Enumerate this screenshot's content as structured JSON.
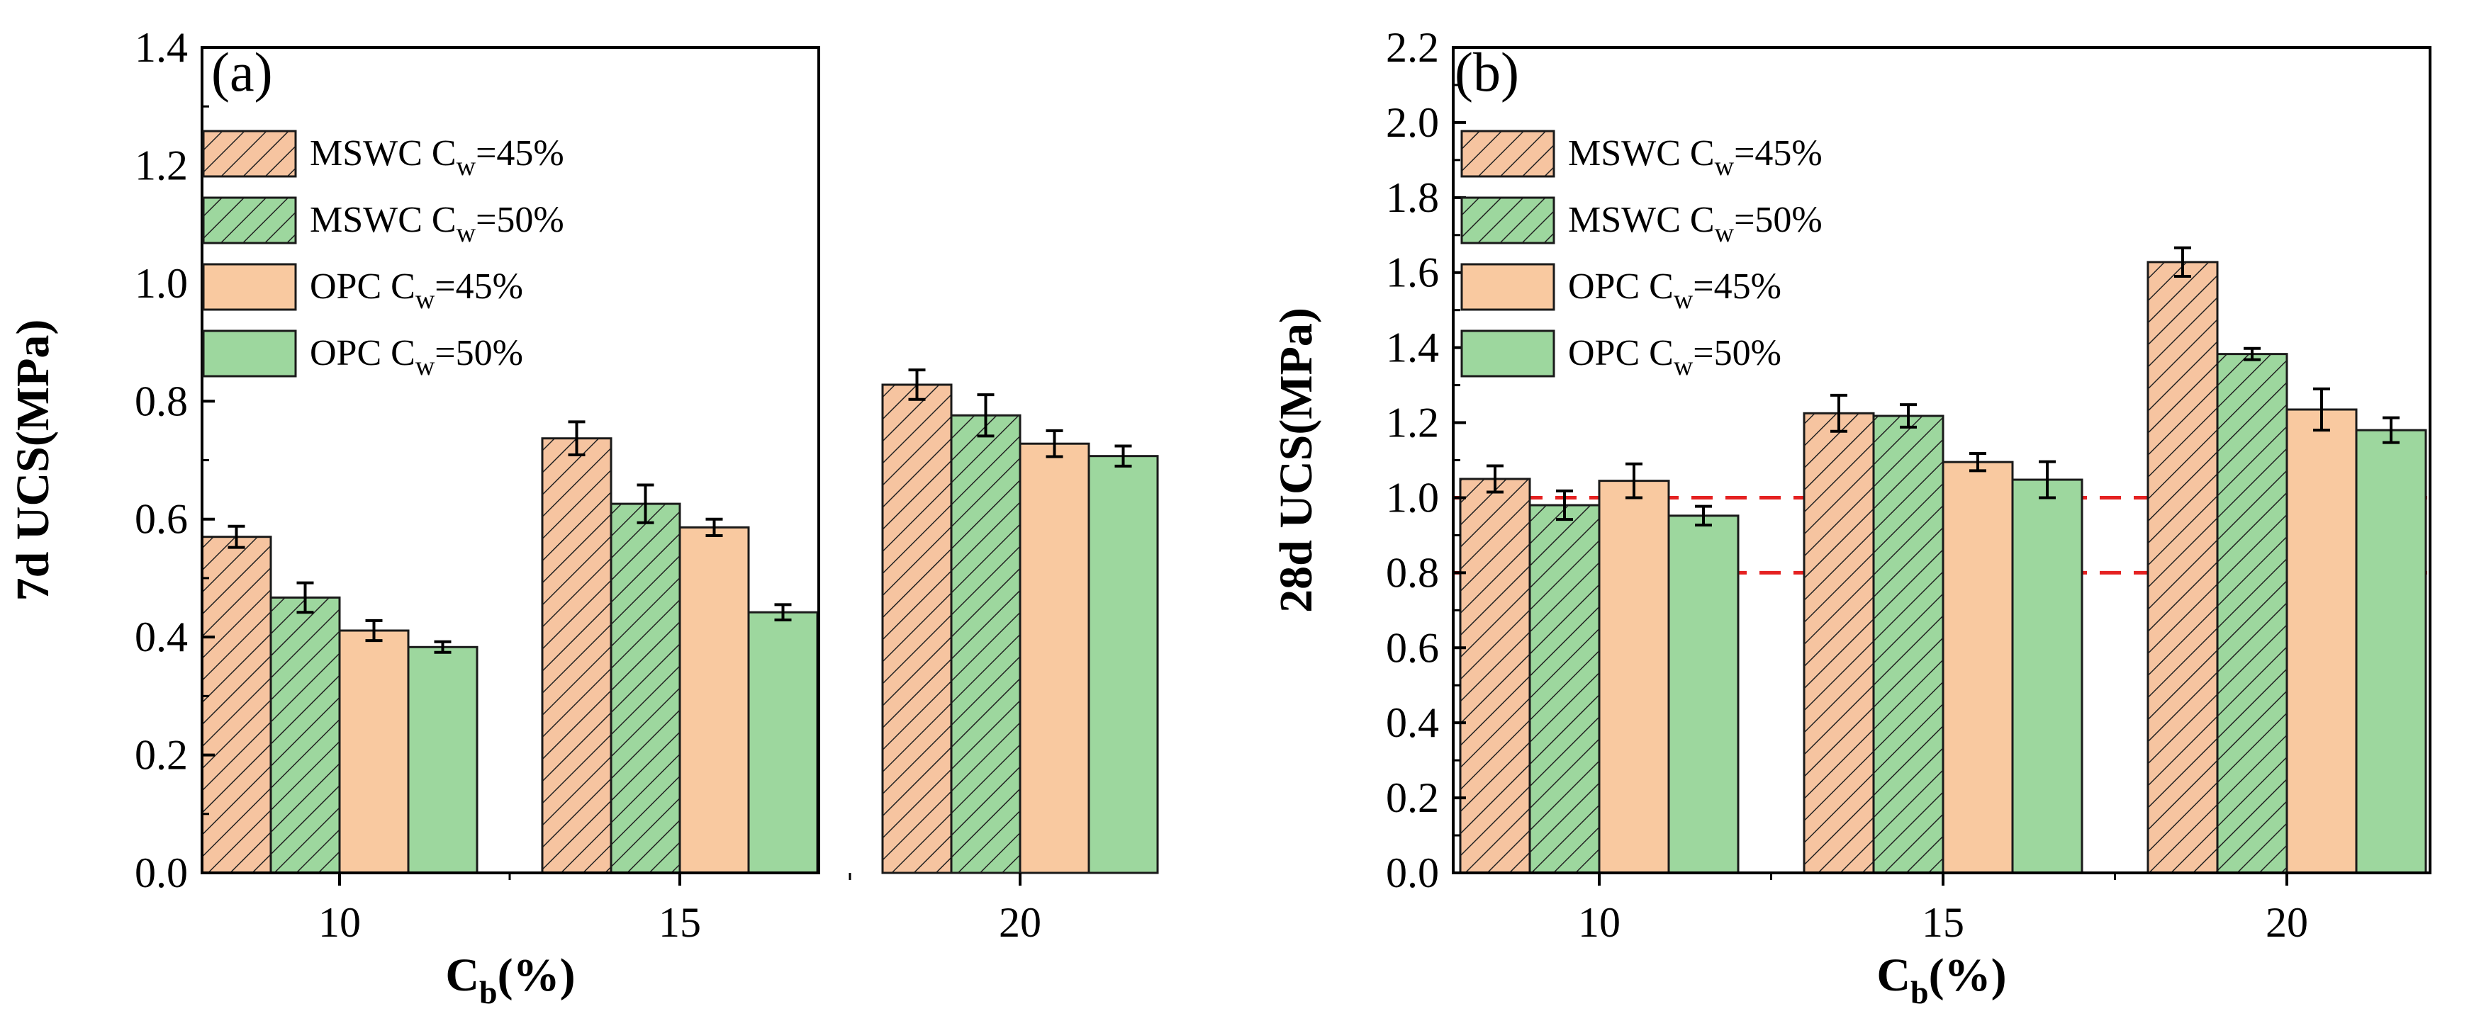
{
  "colors": {
    "msw_orange": "#f6c4a0",
    "msw_green": "#9dd79e",
    "opc_orange": "#f9c9a0",
    "opc_green": "#9dd79e",
    "hatch": "#222222",
    "ref_line": "#e52121"
  },
  "chart_data": [
    {
      "type": "bar",
      "panel_label": "(a)",
      "xlabel": {
        "main": "C",
        "sub": "b",
        "suffix": "(%)"
      },
      "ylabel": "7d UCS(MPa)",
      "categories": [
        "10",
        "15",
        "20"
      ],
      "ylim": [
        0,
        1.4
      ],
      "yticks": [
        "0.0",
        "0.2",
        "0.4",
        "0.6",
        "0.8",
        "1.0",
        "1.2",
        "1.4"
      ],
      "legend_position": "top-left",
      "series": [
        {
          "name": "MSWC C_w=45%",
          "label_pre": "MSWC C",
          "label_sub": "w",
          "label_post": "=45%",
          "pattern": "hatch",
          "color_key": "msw_orange",
          "values": [
            0.57,
            0.737,
            0.828
          ],
          "errors": [
            0.018,
            0.028,
            0.025
          ]
        },
        {
          "name": "MSWC C_w=50%",
          "label_pre": "MSWC C",
          "label_sub": "w",
          "label_post": "=50%",
          "pattern": "hatch",
          "color_key": "msw_green",
          "values": [
            0.467,
            0.626,
            0.776
          ],
          "errors": [
            0.025,
            0.032,
            0.035
          ]
        },
        {
          "name": "OPC C_w=45%",
          "label_pre": "OPC C",
          "label_sub": "w",
          "label_post": "=45%",
          "pattern": "solid",
          "color_key": "opc_orange",
          "values": [
            0.411,
            0.586,
            0.728
          ],
          "errors": [
            0.017,
            0.014,
            0.022
          ]
        },
        {
          "name": "OPC C_w=50%",
          "label_pre": "OPC C",
          "label_sub": "w",
          "label_post": "=50%",
          "pattern": "solid",
          "color_key": "opc_green",
          "values": [
            0.383,
            0.442,
            0.707
          ],
          "errors": [
            0.009,
            0.013,
            0.017
          ]
        }
      ],
      "reference_lines": []
    },
    {
      "type": "bar",
      "panel_label": "(b)",
      "xlabel": {
        "main": "C",
        "sub": "b",
        "suffix": "(%)"
      },
      "ylabel": "28d UCS(MPa)",
      "categories": [
        "10",
        "15",
        "20"
      ],
      "ylim": [
        0,
        2.2
      ],
      "yticks": [
        "0.0",
        "0.2",
        "0.4",
        "0.6",
        "0.8",
        "1.0",
        "1.2",
        "1.4",
        "1.6",
        "1.8",
        "2.0",
        "2.2"
      ],
      "legend_position": "top-left",
      "series": [
        {
          "name": "MSWC C_w=45%",
          "label_pre": "MSWC C",
          "label_sub": "w",
          "label_post": "=45%",
          "pattern": "hatch",
          "color_key": "msw_orange",
          "values": [
            1.05,
            1.225,
            1.628
          ],
          "errors": [
            0.035,
            0.048,
            0.038
          ]
        },
        {
          "name": "MSWC C_w=50%",
          "label_pre": "MSWC C",
          "label_sub": "w",
          "label_post": "=50%",
          "pattern": "hatch",
          "color_key": "msw_green",
          "values": [
            0.98,
            1.218,
            1.383
          ],
          "errors": [
            0.038,
            0.03,
            0.015
          ]
        },
        {
          "name": "OPC C_w=45%",
          "label_pre": "OPC C",
          "label_sub": "w",
          "label_post": "=45%",
          "pattern": "solid",
          "color_key": "opc_orange",
          "values": [
            1.045,
            1.095,
            1.235
          ],
          "errors": [
            0.045,
            0.023,
            0.055
          ]
        },
        {
          "name": "OPC C_w=50%",
          "label_pre": "OPC C",
          "label_sub": "w",
          "label_post": "=50%",
          "pattern": "solid",
          "color_key": "opc_green",
          "values": [
            0.952,
            1.048,
            1.18
          ],
          "errors": [
            0.025,
            0.048,
            0.033
          ]
        }
      ],
      "reference_lines": [
        1.0,
        0.8
      ]
    }
  ]
}
